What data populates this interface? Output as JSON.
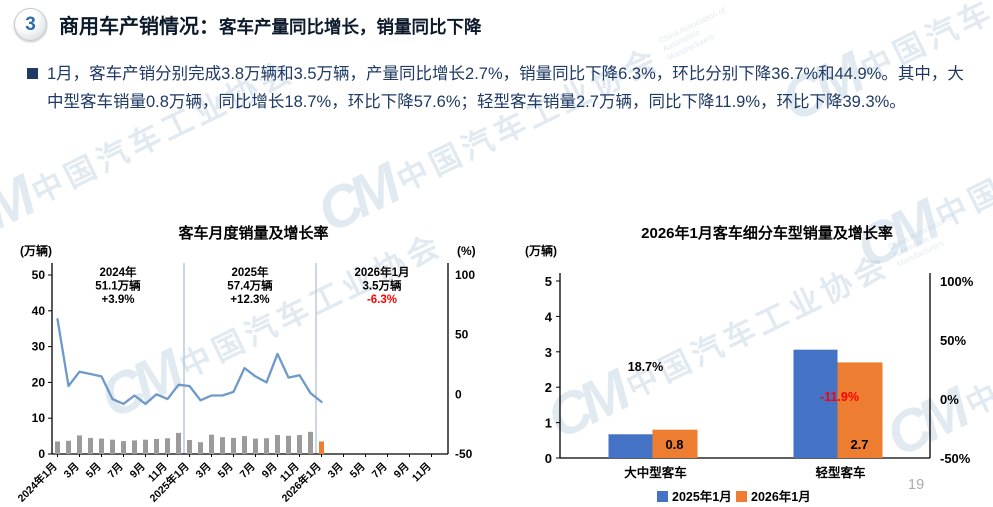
{
  "page": {
    "badge": "3",
    "title": "商用车产销情况：",
    "subtitle": "客车产量同比增长，销量同比下降",
    "body": "1月，客车产销分别完成3.8万辆和3.5万辆，产量同比增长2.7%，销量同比下降6.3%，环比分别下降36.7%和44.9%。其中，大中型客车销量0.8万辆，同比增长18.7%，环比下降57.6%；轻型客车销量2.7万辆，同比下降11.9%，环比下降39.3%。",
    "page_number": "19",
    "watermark": {
      "logo": "CM",
      "text": "中国汽车工业协会",
      "subtext": "China Association of Automobile Manufacturers"
    }
  },
  "colors": {
    "navy_text": "#1f3a63",
    "red": "#ff0000",
    "black": "#000000"
  },
  "chart_data": [
    {
      "type": "bar+line combo",
      "title": "客车月度销量及增长率",
      "left_axis_unit": "(万辆)",
      "right_axis_unit": "(%)",
      "left_ylim": [
        0,
        50
      ],
      "left_ticks": [
        0,
        10,
        20,
        30,
        40,
        50
      ],
      "right_ylim": [
        -50,
        100
      ],
      "right_ticks": [
        -50,
        0,
        50,
        100
      ],
      "x_slots": 36,
      "x_tick_labels": [
        "2024年1月",
        "3月",
        "5月",
        "7月",
        "9月",
        "11月",
        "2025年1月",
        "3月",
        "5月",
        "7月",
        "9月",
        "11月",
        "2026年1月",
        "3月",
        "5月",
        "7月",
        "9月",
        "11月"
      ],
      "separator_month_indices": [
        12,
        24
      ],
      "bars": {
        "unit": "万辆",
        "values": [
          3.5,
          3.7,
          5.2,
          4.5,
          4.3,
          4.0,
          3.6,
          3.8,
          4.0,
          4.2,
          4.4,
          5.9,
          3.9,
          3.3,
          5.4,
          4.7,
          4.5,
          5.0,
          4.3,
          4.4,
          5.3,
          5.1,
          5.3,
          6.2,
          3.5
        ],
        "color": "#9b9b9b",
        "color_last": "#ed7d31"
      },
      "line": {
        "unit": "%",
        "values": [
          63,
          7,
          19,
          17,
          15,
          -4,
          -8,
          -1,
          -8,
          0,
          -4,
          8,
          7,
          -5,
          -1,
          -1,
          2,
          22,
          15,
          10,
          34,
          14,
          16,
          1,
          -6.3
        ],
        "color": "#6d9ac8"
      },
      "annotations": [
        {
          "lines": [
            "2024年",
            "51.1万辆",
            "+3.9%"
          ],
          "highlight": false
        },
        {
          "lines": [
            "2025年",
            "57.4万辆",
            "+12.3%"
          ],
          "highlight": false
        },
        {
          "lines": [
            "2026年1月",
            "3.5万辆",
            "-6.3%"
          ],
          "highlight": true
        }
      ],
      "separator_color": "#afc3d6"
    },
    {
      "type": "bar",
      "title": "2026年1月客车细分车型销量及增长率",
      "left_axis_unit": "(万辆)",
      "left_ylim": [
        0,
        5
      ],
      "left_ticks": [
        0,
        1,
        2,
        3,
        4,
        5
      ],
      "right_ticks": [
        100,
        50,
        0,
        -50
      ],
      "right_tick_labels": [
        "100%",
        "50%",
        "0%",
        "-50%"
      ],
      "categories": [
        "大中型客车",
        "轻型客车"
      ],
      "series": [
        {
          "name": "2025年1月",
          "color": "#4472c4",
          "values": [
            0.67,
            3.06
          ]
        },
        {
          "name": "2026年1月",
          "color": "#ed7d31",
          "values": [
            0.8,
            2.7
          ]
        }
      ],
      "value_labels": [
        "0.8",
        "2.7"
      ],
      "growth_labels": [
        {
          "text": "18.7%",
          "color": "#000000"
        },
        {
          "text": "-11.9%",
          "color": "#ff0000"
        }
      ]
    }
  ]
}
